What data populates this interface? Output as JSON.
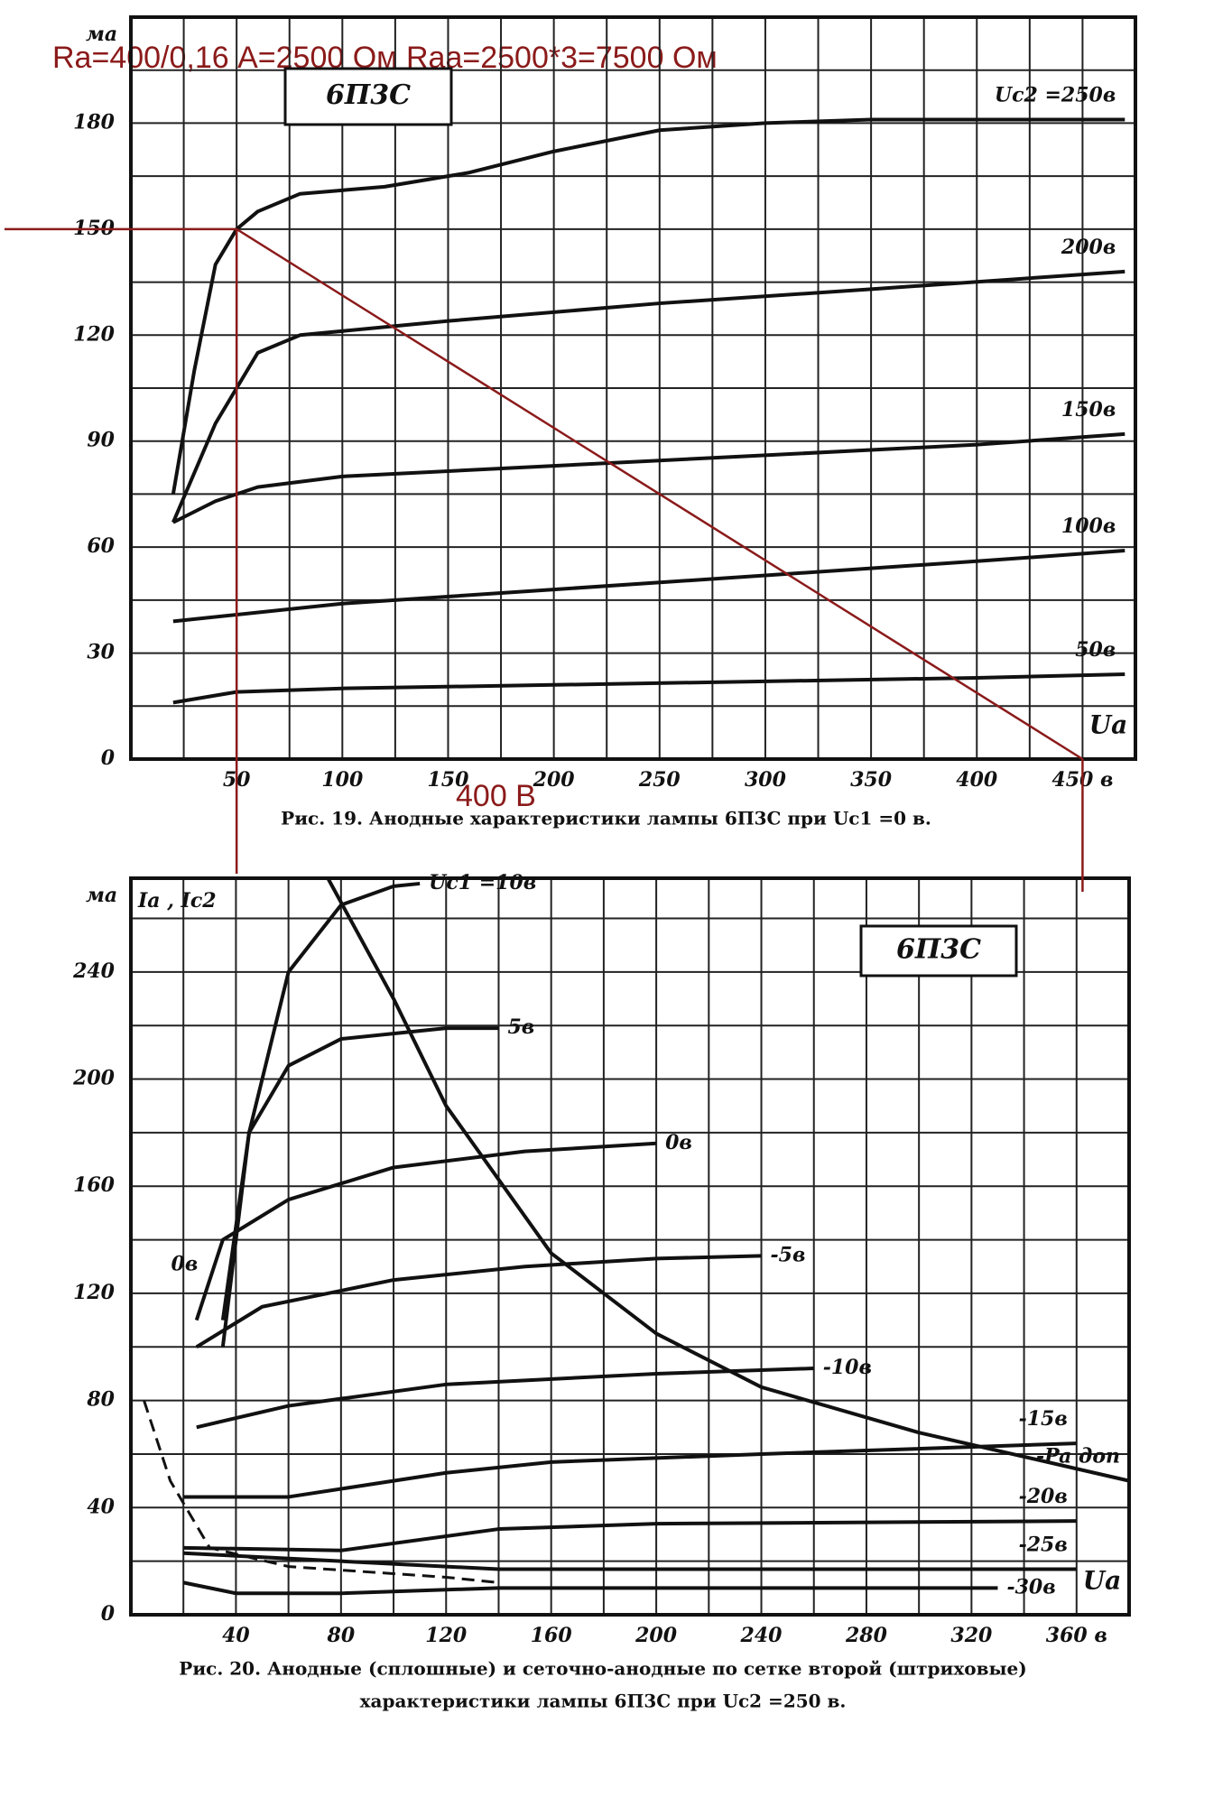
{
  "annotations": {
    "formula": "Ra=400/0,16 А=2500 Ом Raa=2500*3=7500 Ом",
    "voltage": "400 В"
  },
  "load_line": {
    "color": "#8b1a1a",
    "x": [
      50,
      450
    ],
    "values": [
      150,
      0
    ]
  },
  "chart_data": [
    {
      "type": "line",
      "label": "6П3С",
      "ylabel": "ма",
      "xlabel": "Ua",
      "caption": [
        "Рис. 19. Анодные характеристики лампы 6П3С при Uc1 =0 в."
      ],
      "xlim": [
        0,
        475
      ],
      "ylim": [
        0,
        210
      ],
      "xticks": [
        50,
        100,
        150,
        200,
        250,
        300,
        350,
        400,
        {
          "value": 450,
          "label": "450 в"
        }
      ],
      "yticks": [
        0,
        30,
        60,
        90,
        120,
        150,
        180
      ],
      "xgrid": [
        25,
        75,
        125,
        175,
        225,
        275,
        325,
        375,
        425
      ],
      "ygrid": [
        15,
        45,
        75,
        105,
        135,
        165,
        195
      ],
      "color": "#111",
      "series": [
        {
          "name": "Uc2 =250в",
          "x": [
            20,
            30,
            40,
            50,
            60,
            80,
            120,
            160,
            200,
            250,
            300,
            350,
            400,
            470
          ],
          "values": [
            75,
            110,
            140,
            150,
            155,
            160,
            162,
            166,
            172,
            178,
            180,
            181,
            181,
            181
          ]
        },
        {
          "name": "200в",
          "x": [
            20,
            40,
            60,
            80,
            150,
            250,
            350,
            470
          ],
          "values": [
            67,
            95,
            115,
            120,
            124,
            129,
            133,
            138
          ]
        },
        {
          "name": "150в",
          "x": [
            20,
            40,
            60,
            100,
            200,
            300,
            400,
            470
          ],
          "values": [
            67,
            73,
            77,
            80,
            83,
            86,
            89,
            92
          ]
        },
        {
          "name": "100в",
          "x": [
            20,
            100,
            200,
            300,
            400,
            470
          ],
          "values": [
            39,
            44,
            48,
            52,
            56,
            59
          ]
        },
        {
          "name": "50в",
          "x": [
            20,
            50,
            100,
            200,
            300,
            400,
            470
          ],
          "values": [
            16,
            19,
            20,
            21,
            22,
            23,
            24
          ]
        }
      ]
    },
    {
      "type": "line",
      "label": "6П3С",
      "ylabel": "ма",
      "current_label": "Ia , Ic2",
      "xlabel": "Ua",
      "caption": [
        "Рис. 20. Анодные (сплошные) и сеточно-анодные по сетке второй (штриховые)",
        "характеристики лампы 6П3С при Uc2 =250 в."
      ],
      "xlim": [
        0,
        380
      ],
      "ylim": [
        0,
        275
      ],
      "xticks": [
        40,
        80,
        120,
        160,
        200,
        240,
        280,
        320,
        {
          "value": 360,
          "label": "360 в"
        }
      ],
      "yticks": [
        0,
        40,
        80,
        120,
        160,
        200,
        240
      ],
      "xgrid": [
        20,
        60,
        100,
        140,
        180,
        220,
        260,
        300,
        340
      ],
      "ygrid": [
        20,
        60,
        100,
        140,
        180,
        220,
        260
      ],
      "color": "#111",
      "series": [
        {
          "name": "Uc1 =10в",
          "x": [
            35,
            45,
            60,
            80,
            100,
            110
          ],
          "values": [
            110,
            180,
            240,
            265,
            272,
            273
          ]
        },
        {
          "name": "5в",
          "x": [
            35,
            45,
            60,
            80,
            120,
            140
          ],
          "values": [
            100,
            180,
            205,
            215,
            219,
            219
          ]
        },
        {
          "name": "0в",
          "x": [
            25,
            35,
            60,
            100,
            150,
            200
          ],
          "values": [
            110,
            140,
            155,
            167,
            173,
            176
          ]
        },
        {
          "name": "-5в",
          "x": [
            25,
            50,
            100,
            150,
            200,
            240
          ],
          "values": [
            100,
            115,
            125,
            130,
            133,
            134
          ]
        },
        {
          "name": "-10в",
          "x": [
            25,
            60,
            120,
            200,
            260
          ],
          "values": [
            70,
            78,
            86,
            90,
            92
          ]
        },
        {
          "name": "-15в",
          "x": [
            20,
            60,
            120,
            160,
            240,
            360
          ],
          "values": [
            44,
            44,
            53,
            57,
            60,
            64
          ]
        },
        {
          "name": "-20в",
          "x": [
            20,
            80,
            140,
            200,
            360
          ],
          "values": [
            25,
            24,
            32,
            34,
            35
          ]
        },
        {
          "name": "-25в",
          "x": [
            20,
            80,
            140,
            200,
            360
          ],
          "values": [
            23,
            20,
            17,
            17,
            17
          ]
        },
        {
          "name": "-30в",
          "x": [
            20,
            40,
            80,
            140,
            200,
            330
          ],
          "values": [
            12,
            8,
            8,
            10,
            10,
            10
          ]
        },
        {
          "name": "-Pa доп",
          "x": [
            75,
            100,
            120,
            160,
            200,
            240,
            300,
            380
          ],
          "values": [
            275,
            230,
            190,
            135,
            105,
            85,
            68,
            50
          ]
        },
        {
          "name": "0в",
          "dashed": true,
          "x": [
            5,
            15,
            30,
            60,
            120,
            140
          ],
          "values": [
            80,
            50,
            25,
            18,
            14,
            12
          ]
        }
      ]
    }
  ]
}
